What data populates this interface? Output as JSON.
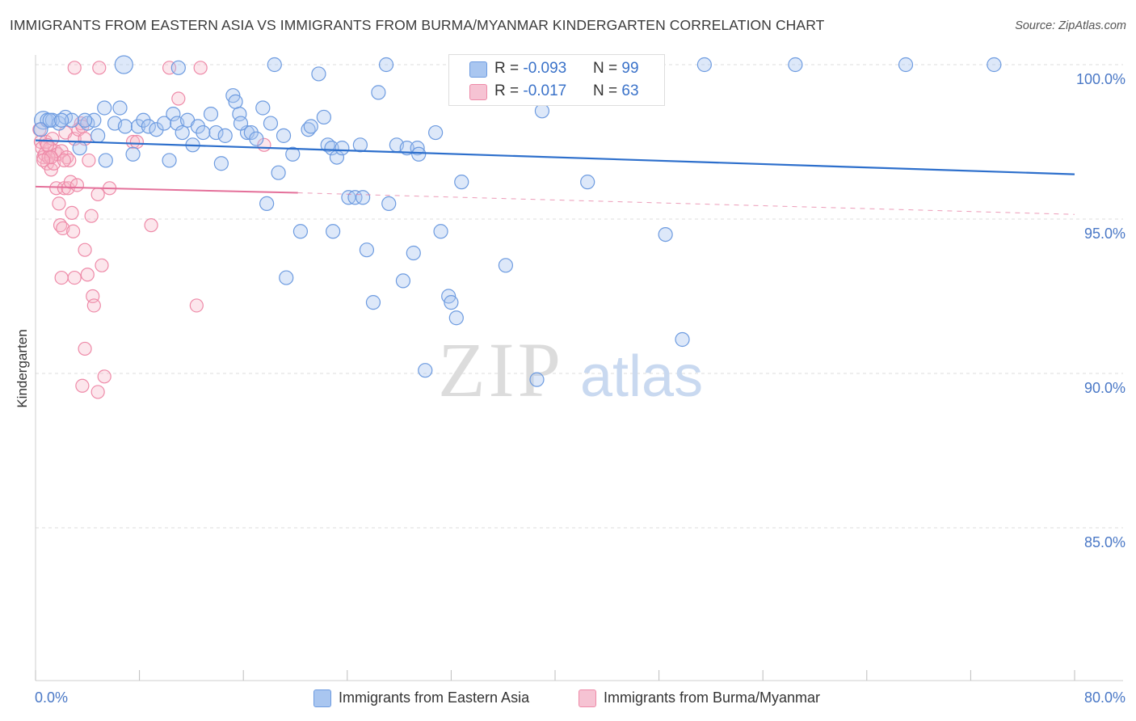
{
  "header": {
    "title": "IMMIGRANTS FROM EASTERN ASIA VS IMMIGRANTS FROM BURMA/MYANMAR KINDERGARTEN CORRELATION CHART",
    "source": "Source: ZipAtlas.com"
  },
  "watermark": {
    "zip": "ZIP",
    "atlas": "atlas"
  },
  "legend_top": {
    "rows": [
      {
        "r_label": "R = ",
        "r_value": "-0.093",
        "n_label": "N = ",
        "n_value": "99"
      },
      {
        "r_label": "R = ",
        "r_value": "-0.017",
        "n_label": "N = ",
        "n_value": "63"
      }
    ]
  },
  "legend_bottom": {
    "series1": "Immigrants from Eastern Asia",
    "series2": "Immigrants from Burma/Myanmar"
  },
  "colors": {
    "blue_fill": "#a9c6f0",
    "blue_stroke": "#6d9be0",
    "blue_line": "#2d6fcc",
    "pink_fill": "#f6b7c9",
    "pink_stroke": "#ee8aa8",
    "pink_line": "#e4709a",
    "tick_label": "#4a78c6",
    "grid": "#dcdcdc"
  },
  "chart_data": {
    "type": "scatter",
    "title": "IMMIGRANTS FROM EASTERN ASIA VS IMMIGRANTS FROM BURMA/MYANMAR KINDERGARTEN CORRELATION CHART",
    "xlabel": "",
    "ylabel": "Kindergarten",
    "xlim": [
      0,
      80
    ],
    "ylim": [
      80.5,
      100.5
    ],
    "x_tick_labels": [
      "0.0%",
      "80.0%"
    ],
    "y_ticks": [
      85,
      90,
      95,
      100
    ],
    "y_tick_labels": [
      "85.0%",
      "90.0%",
      "95.0%",
      "100.0%"
    ],
    "grid": "horizontal dashed",
    "legend_position": "top-center and bottom",
    "series": [
      {
        "name": "Immigrants from Eastern Asia",
        "color": "#6d9be0",
        "r": -0.093,
        "n": 99,
        "trend": {
          "x": [
            0,
            80
          ],
          "y": [
            97.55,
            96.45
          ]
        },
        "points": [
          [
            0.6,
            98.2
          ],
          [
            0.9,
            98.2
          ],
          [
            1.3,
            98.2
          ],
          [
            1.8,
            98.1
          ],
          [
            2.3,
            98.3
          ],
          [
            2.8,
            98.2
          ],
          [
            3.4,
            97.3
          ],
          [
            4.0,
            98.1
          ],
          [
            4.5,
            98.2
          ],
          [
            4.8,
            97.7
          ],
          [
            5.3,
            98.6
          ],
          [
            5.4,
            96.9
          ],
          [
            6.1,
            98.1
          ],
          [
            6.5,
            98.6
          ],
          [
            6.9,
            98.0
          ],
          [
            7.5,
            97.1
          ],
          [
            7.9,
            98.0
          ],
          [
            8.3,
            98.2
          ],
          [
            8.7,
            98.0
          ],
          [
            9.3,
            97.9
          ],
          [
            9.9,
            98.1
          ],
          [
            10.3,
            96.9
          ],
          [
            10.6,
            98.4
          ],
          [
            10.9,
            98.1
          ],
          [
            11.3,
            97.8
          ],
          [
            11.7,
            98.2
          ],
          [
            12.1,
            97.4
          ],
          [
            12.5,
            98.0
          ],
          [
            12.9,
            97.8
          ],
          [
            13.5,
            98.4
          ],
          [
            13.9,
            97.8
          ],
          [
            14.3,
            96.8
          ],
          [
            14.6,
            97.7
          ],
          [
            15.2,
            99.0
          ],
          [
            15.4,
            98.8
          ],
          [
            15.7,
            98.4
          ],
          [
            16.3,
            97.8
          ],
          [
            16.6,
            97.8
          ],
          [
            17.0,
            97.6
          ],
          [
            17.5,
            98.6
          ],
          [
            17.8,
            95.5
          ],
          [
            18.1,
            98.1
          ],
          [
            18.4,
            100.0
          ],
          [
            18.7,
            96.5
          ],
          [
            19.1,
            97.7
          ],
          [
            19.3,
            93.1
          ],
          [
            19.8,
            97.1
          ],
          [
            20.4,
            94.6
          ],
          [
            21.0,
            97.9
          ],
          [
            21.2,
            98.0
          ],
          [
            21.8,
            99.7
          ],
          [
            22.2,
            98.3
          ],
          [
            22.5,
            97.4
          ],
          [
            22.8,
            97.3
          ],
          [
            22.9,
            94.6
          ],
          [
            23.2,
            97.0
          ],
          [
            23.6,
            97.3
          ],
          [
            24.1,
            95.7
          ],
          [
            24.6,
            95.7
          ],
          [
            25.0,
            97.4
          ],
          [
            25.2,
            95.7
          ],
          [
            25.5,
            94.0
          ],
          [
            26.0,
            92.3
          ],
          [
            26.4,
            99.1
          ],
          [
            27.0,
            100.0
          ],
          [
            27.2,
            95.5
          ],
          [
            27.8,
            97.4
          ],
          [
            28.3,
            93.0
          ],
          [
            28.6,
            97.3
          ],
          [
            29.1,
            93.9
          ],
          [
            29.4,
            97.3
          ],
          [
            29.5,
            97.1
          ],
          [
            30.0,
            90.1
          ],
          [
            30.8,
            97.8
          ],
          [
            31.2,
            94.6
          ],
          [
            31.8,
            92.5
          ],
          [
            32.0,
            92.3
          ],
          [
            32.4,
            91.8
          ],
          [
            32.8,
            96.2
          ],
          [
            34.5,
            100.0
          ],
          [
            36.2,
            93.5
          ],
          [
            38.2,
            100.0
          ],
          [
            38.6,
            89.8
          ],
          [
            39.0,
            98.5
          ],
          [
            42.5,
            96.2
          ],
          [
            44.0,
            100.0
          ],
          [
            48.5,
            94.5
          ],
          [
            49.8,
            91.1
          ],
          [
            51.5,
            100.0
          ],
          [
            58.5,
            100.0
          ],
          [
            67.0,
            100.0
          ],
          [
            73.8,
            100.0
          ],
          [
            0.4,
            97.9
          ],
          [
            1.1,
            98.2
          ],
          [
            2.0,
            98.2
          ],
          [
            3.8,
            98.2
          ],
          [
            6.8,
            100.0
          ],
          [
            11.0,
            99.9
          ],
          [
            15.8,
            98.1
          ]
        ]
      },
      {
        "name": "Immigrants from Burma/Myanmar",
        "color": "#ee8aa8",
        "r": -0.017,
        "n": 63,
        "trend": {
          "x": [
            0,
            20.2
          ],
          "y": [
            96.05,
            95.85
          ]
        },
        "trend_dashed": {
          "x": [
            20.2,
            80
          ],
          "y": [
            95.85,
            95.15
          ]
        },
        "points": [
          [
            0.3,
            97.9
          ],
          [
            0.4,
            97.5
          ],
          [
            0.5,
            97.3
          ],
          [
            0.6,
            97.0
          ],
          [
            0.7,
            97.1
          ],
          [
            0.8,
            97.5
          ],
          [
            0.9,
            96.8
          ],
          [
            1.0,
            97.0
          ],
          [
            1.1,
            97.3
          ],
          [
            1.2,
            96.6
          ],
          [
            1.3,
            97.6
          ],
          [
            1.4,
            96.8
          ],
          [
            1.5,
            97.2
          ],
          [
            1.6,
            96.0
          ],
          [
            1.7,
            97.1
          ],
          [
            1.8,
            95.5
          ],
          [
            1.9,
            94.8
          ],
          [
            2.0,
            97.2
          ],
          [
            2.1,
            94.7
          ],
          [
            2.2,
            96.0
          ],
          [
            2.3,
            97.8
          ],
          [
            2.4,
            97.0
          ],
          [
            2.5,
            96.0
          ],
          [
            2.6,
            96.9
          ],
          [
            2.7,
            96.2
          ],
          [
            2.8,
            95.2
          ],
          [
            2.9,
            94.6
          ],
          [
            3.0,
            97.6
          ],
          [
            3.2,
            96.1
          ],
          [
            3.3,
            97.9
          ],
          [
            3.5,
            98.1
          ],
          [
            3.6,
            98.0
          ],
          [
            3.8,
            97.6
          ],
          [
            4.1,
            96.9
          ],
          [
            4.3,
            95.1
          ],
          [
            4.4,
            92.5
          ],
          [
            4.5,
            92.2
          ],
          [
            4.8,
            95.8
          ],
          [
            5.1,
            93.5
          ],
          [
            5.3,
            89.9
          ],
          [
            5.7,
            96.0
          ],
          [
            7.5,
            97.5
          ],
          [
            7.8,
            97.5
          ],
          [
            8.9,
            94.8
          ],
          [
            10.3,
            99.9
          ],
          [
            11.0,
            98.9
          ],
          [
            12.4,
            92.2
          ],
          [
            12.7,
            99.9
          ],
          [
            17.6,
            97.4
          ],
          [
            2.0,
            93.1
          ],
          [
            3.0,
            93.1
          ],
          [
            3.8,
            94.0
          ],
          [
            4.0,
            93.2
          ],
          [
            3.8,
            90.8
          ],
          [
            3.6,
            89.6
          ],
          [
            4.8,
            89.4
          ],
          [
            3.0,
            99.9
          ],
          [
            4.9,
            99.9
          ],
          [
            1.0,
            97.0
          ],
          [
            1.2,
            97.0
          ],
          [
            0.6,
            96.9
          ],
          [
            2.2,
            96.9
          ],
          [
            0.9,
            97.4
          ]
        ]
      }
    ]
  }
}
